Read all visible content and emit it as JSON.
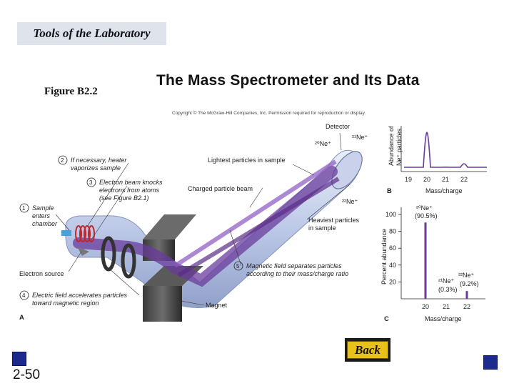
{
  "header": {
    "title": "Tools of the Laboratory"
  },
  "figure_label": "Figure B2.2",
  "slide_title": "The Mass Spectrometer and Its Data",
  "copyright": "Copyright © The McGraw-Hill Companies, Inc. Permission required for reproduction or display.",
  "diagram_a": {
    "panel": "A",
    "steps": [
      {
        "num": "1",
        "lines": [
          "Sample",
          "enters",
          "chamber"
        ]
      },
      {
        "num": "2",
        "lines": [
          "If necessary, heater",
          "vaporizes sample"
        ]
      },
      {
        "num": "3",
        "lines": [
          "Electron beam knocks",
          "electrons from atoms",
          "(see Figure B2.1)"
        ]
      },
      {
        "num": "4",
        "lines": [
          "Electric field accelerates particles",
          "toward magnetic region"
        ]
      },
      {
        "num": "5",
        "lines": [
          "Magnetic field separates particles",
          "according to their mass/charge ratio"
        ]
      }
    ],
    "labels": {
      "detector": "Detector",
      "lightest": "Lightest particles in sample",
      "charged_beam": "Charged particle beam",
      "heaviest": [
        "Heaviest particles",
        "in sample"
      ],
      "electron_source": "Electron source",
      "magnet": "Magnet",
      "ion20": "²⁰Ne⁺",
      "ion21": "²¹Ne⁺",
      "ion22": "²²Ne⁺"
    }
  },
  "chart_data": [
    {
      "type": "line",
      "panel": "B",
      "ylabel": [
        "Abundance of",
        "Ne⁺ particles"
      ],
      "xlabel": "Mass/charge",
      "x_ticks": [
        "19",
        "20",
        "21",
        "22"
      ],
      "peaks": [
        {
          "x": 20,
          "height": 0.905
        },
        {
          "x": 21,
          "height": 0.003
        },
        {
          "x": 22,
          "height": 0.092
        }
      ]
    },
    {
      "type": "bar",
      "panel": "C",
      "xlabel": "Mass/charge",
      "ylabel": "Percent abundance",
      "y_ticks": [
        "20",
        "40",
        "60",
        "80",
        "100"
      ],
      "ylim": [
        0,
        100
      ],
      "categories": [
        "20",
        "21",
        "22"
      ],
      "values": [
        90.5,
        0.3,
        9.2
      ],
      "annotations": [
        {
          "ion": "²⁰Ne⁺",
          "value_label": "(90.5%)"
        },
        {
          "ion": "²¹Ne⁺",
          "value_label": "(0.3%)"
        },
        {
          "ion": "²²Ne⁺",
          "value_label": "(9.2%)"
        }
      ]
    }
  ],
  "back_button": {
    "label": "Back"
  },
  "slide_number": "2-50",
  "colors": {
    "nav_square": "#1b2a8c",
    "back_button": "#e8c21a",
    "header_bg": "#dfe3ec",
    "beam": "#7a4aa8"
  }
}
